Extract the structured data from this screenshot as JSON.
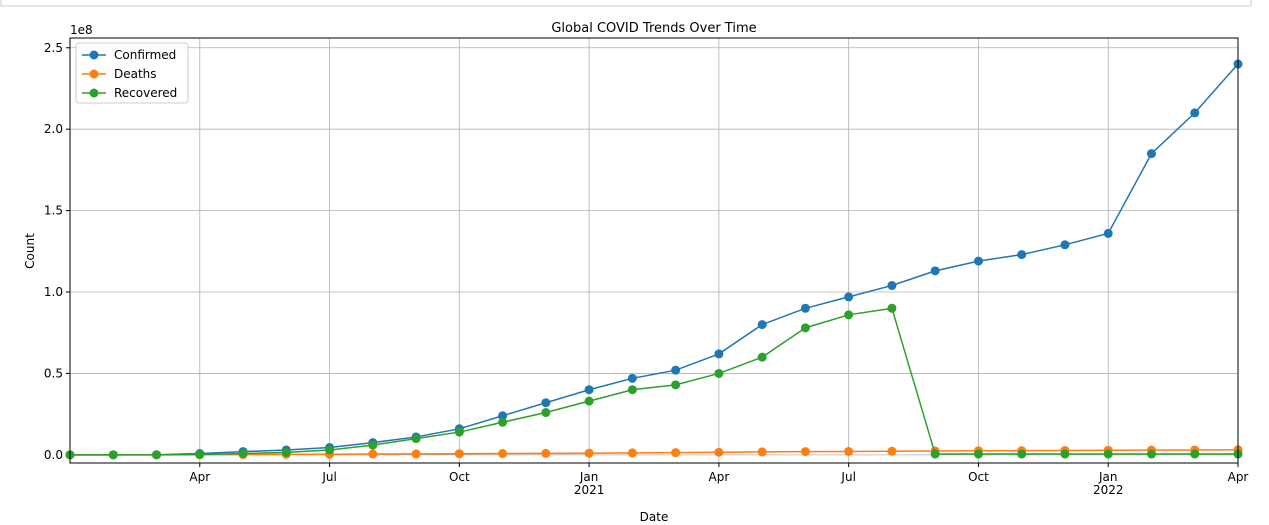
{
  "chart_data": {
    "type": "line",
    "title": "Global COVID Trends Over Time",
    "x_label": "Date",
    "y_label": "Count",
    "offset_text": "1e8",
    "x": [
      "2020-01",
      "2020-02",
      "2020-03",
      "2020-04",
      "2020-05",
      "2020-06",
      "2020-07",
      "2020-08",
      "2020-09",
      "2020-10",
      "2020-11",
      "2020-12",
      "2021-01",
      "2021-02",
      "2021-03",
      "2021-04",
      "2021-05",
      "2021-06",
      "2021-07",
      "2021-08",
      "2021-09",
      "2021-10",
      "2021-11",
      "2021-12",
      "2022-01",
      "2022-02",
      "2022-03",
      "2022-04"
    ],
    "series": [
      {
        "name": "Confirmed",
        "color": "#1f77b4",
        "values": [
          0,
          0,
          0.001,
          0.008,
          0.02,
          0.03,
          0.045,
          0.075,
          0.11,
          0.16,
          0.24,
          0.32,
          0.4,
          0.47,
          0.52,
          0.62,
          0.8,
          0.9,
          0.97,
          1.04,
          1.13,
          1.19,
          1.23,
          1.29,
          1.36,
          1.85,
          2.1,
          2.4
        ]
      },
      {
        "name": "Deaths",
        "color": "#ff7f0e",
        "values": [
          0,
          0,
          0,
          0.001,
          0.002,
          0.003,
          0.004,
          0.005,
          0.006,
          0.007,
          0.008,
          0.009,
          0.01,
          0.012,
          0.014,
          0.016,
          0.018,
          0.02,
          0.021,
          0.022,
          0.024,
          0.025,
          0.026,
          0.027,
          0.028,
          0.029,
          0.03,
          0.031
        ]
      },
      {
        "name": "Recovered",
        "color": "#2ca02c",
        "values": [
          0,
          0,
          0,
          0.002,
          0.008,
          0.015,
          0.03,
          0.06,
          0.1,
          0.14,
          0.2,
          0.26,
          0.33,
          0.4,
          0.43,
          0.5,
          0.6,
          0.78,
          0.86,
          0.9,
          0.005,
          0.005,
          0.005,
          0.005,
          0.005,
          0.005,
          0.005,
          0.005
        ]
      }
    ],
    "xlim": [
      "2020-01",
      "2022-04"
    ],
    "xticks": [
      {
        "value": "2020-04",
        "label": "Apr"
      },
      {
        "value": "2020-07",
        "label": "Jul"
      },
      {
        "value": "2020-10",
        "label": "Oct"
      },
      {
        "value": "2021-01",
        "label": "Jan",
        "year": "2021"
      },
      {
        "value": "2021-04",
        "label": "Apr"
      },
      {
        "value": "2021-07",
        "label": "Jul"
      },
      {
        "value": "2021-10",
        "label": "Oct"
      },
      {
        "value": "2022-01",
        "label": "Jan",
        "year": "2022"
      },
      {
        "value": "2022-04",
        "label": "Apr"
      }
    ],
    "ylim": [
      -0.05,
      2.56
    ],
    "yticks": [
      {
        "value": 0,
        "label": "0.0"
      },
      0.5,
      {
        "value": 1,
        "label": "1.0"
      },
      1.5,
      {
        "value": 2,
        "label": "2.0"
      },
      2.5
    ],
    "grid": true,
    "legend": "upper left"
  }
}
